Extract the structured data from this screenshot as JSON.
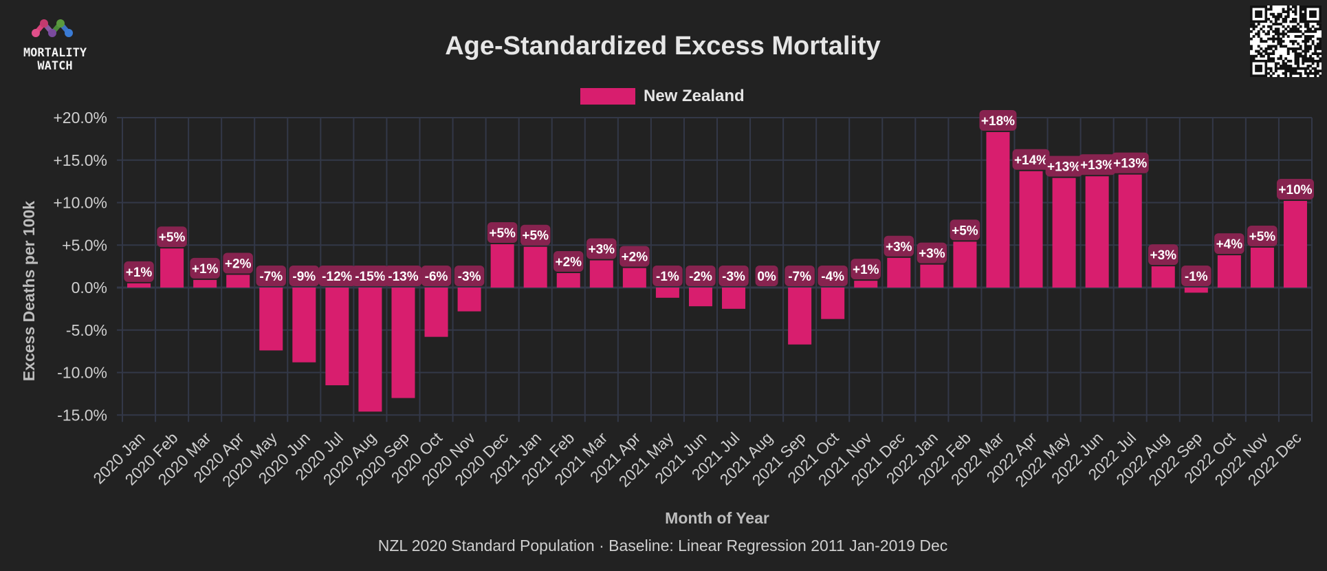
{
  "header": {
    "logo_line1": "MORTALITY",
    "logo_line2": "WATCH"
  },
  "chart_data": {
    "type": "bar",
    "title": "Age-Standardized Excess Mortality",
    "xlabel": "Month of Year",
    "ylabel": "Excess Deaths per 100k",
    "caption": "NZL 2020 Standard Population · Baseline: Linear Regression 2011 Jan-2019 Dec",
    "ylim": [
      -15,
      20
    ],
    "yticks": [
      -15,
      -10,
      -5,
      0,
      5,
      10,
      15,
      20
    ],
    "ytick_labels": [
      "-15.0%",
      "-10.0%",
      "-5.0%",
      "0.0%",
      "+5.0%",
      "+10.0%",
      "+15.0%",
      "+20.0%"
    ],
    "legend_position": "top-center",
    "grid": true,
    "categories": [
      "2020 Jan",
      "2020 Feb",
      "2020 Mar",
      "2020 Apr",
      "2020 May",
      "2020 Jun",
      "2020 Jul",
      "2020 Aug",
      "2020 Sep",
      "2020 Oct",
      "2020 Nov",
      "2020 Dec",
      "2021 Jan",
      "2021 Feb",
      "2021 Mar",
      "2021 Apr",
      "2021 May",
      "2021 Jun",
      "2021 Jul",
      "2021 Aug",
      "2021 Sep",
      "2021 Oct",
      "2021 Nov",
      "2021 Dec",
      "2022 Jan",
      "2022 Feb",
      "2022 Mar",
      "2022 Apr",
      "2022 May",
      "2022 Jun",
      "2022 Jul",
      "2022 Aug",
      "2022 Sep",
      "2022 Oct",
      "2022 Nov",
      "2022 Dec"
    ],
    "series": [
      {
        "name": "New Zealand",
        "color": "#d81e6e",
        "values": [
          0.5,
          4.6,
          0.9,
          1.5,
          -7.4,
          -8.8,
          -11.5,
          -14.6,
          -13.0,
          -5.8,
          -2.8,
          5.1,
          4.8,
          1.7,
          3.2,
          2.3,
          -1.2,
          -2.2,
          -2.5,
          0.0,
          -6.7,
          -3.7,
          0.8,
          3.5,
          2.7,
          5.4,
          18.3,
          13.7,
          12.9,
          13.1,
          13.3,
          2.5,
          -0.6,
          3.8,
          4.7,
          10.2
        ],
        "labels": [
          "+1%",
          "+5%",
          "+1%",
          "+2%",
          "-7%",
          "-9%",
          "-12%",
          "-15%",
          "-13%",
          "-6%",
          "-3%",
          "+5%",
          "+5%",
          "+2%",
          "+3%",
          "+2%",
          "-1%",
          "-2%",
          "-3%",
          "0%",
          "-7%",
          "-4%",
          "+1%",
          "+3%",
          "+3%",
          "+5%",
          "+18%",
          "+14%",
          "+13%",
          "+13%",
          "+13%",
          "+3%",
          "-1%",
          "+4%",
          "+5%",
          "+10%"
        ]
      }
    ],
    "colors": {
      "background": "#222222",
      "grid": "#333848",
      "label_bg": "#87234f",
      "text": "#e6e6e6"
    }
  }
}
